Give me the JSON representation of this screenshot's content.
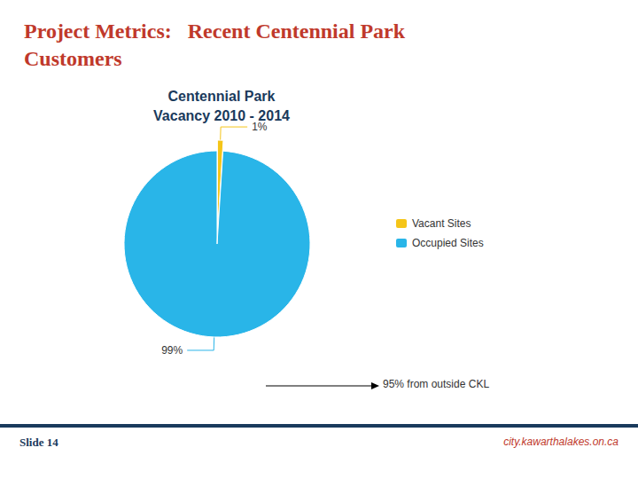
{
  "chart_data": {
    "type": "pie",
    "title": "Project Metrics:   Recent Centennial Park\nCustomers",
    "subtitle": "Centennial Park\nVacancy 2010 - 2014",
    "categories": [
      "Vacant Sites",
      "Occupied Sites"
    ],
    "values": [
      1,
      99
    ],
    "value_labels": [
      "1%",
      "99%"
    ],
    "colors": [
      "#F5C518",
      "#29B5E8"
    ],
    "data_labels": true,
    "legend": "right",
    "annotations": [
      "95% from outside CKL",
      "city.kawarthalakes.on.ca",
      "Slide 14"
    ]
  }
}
